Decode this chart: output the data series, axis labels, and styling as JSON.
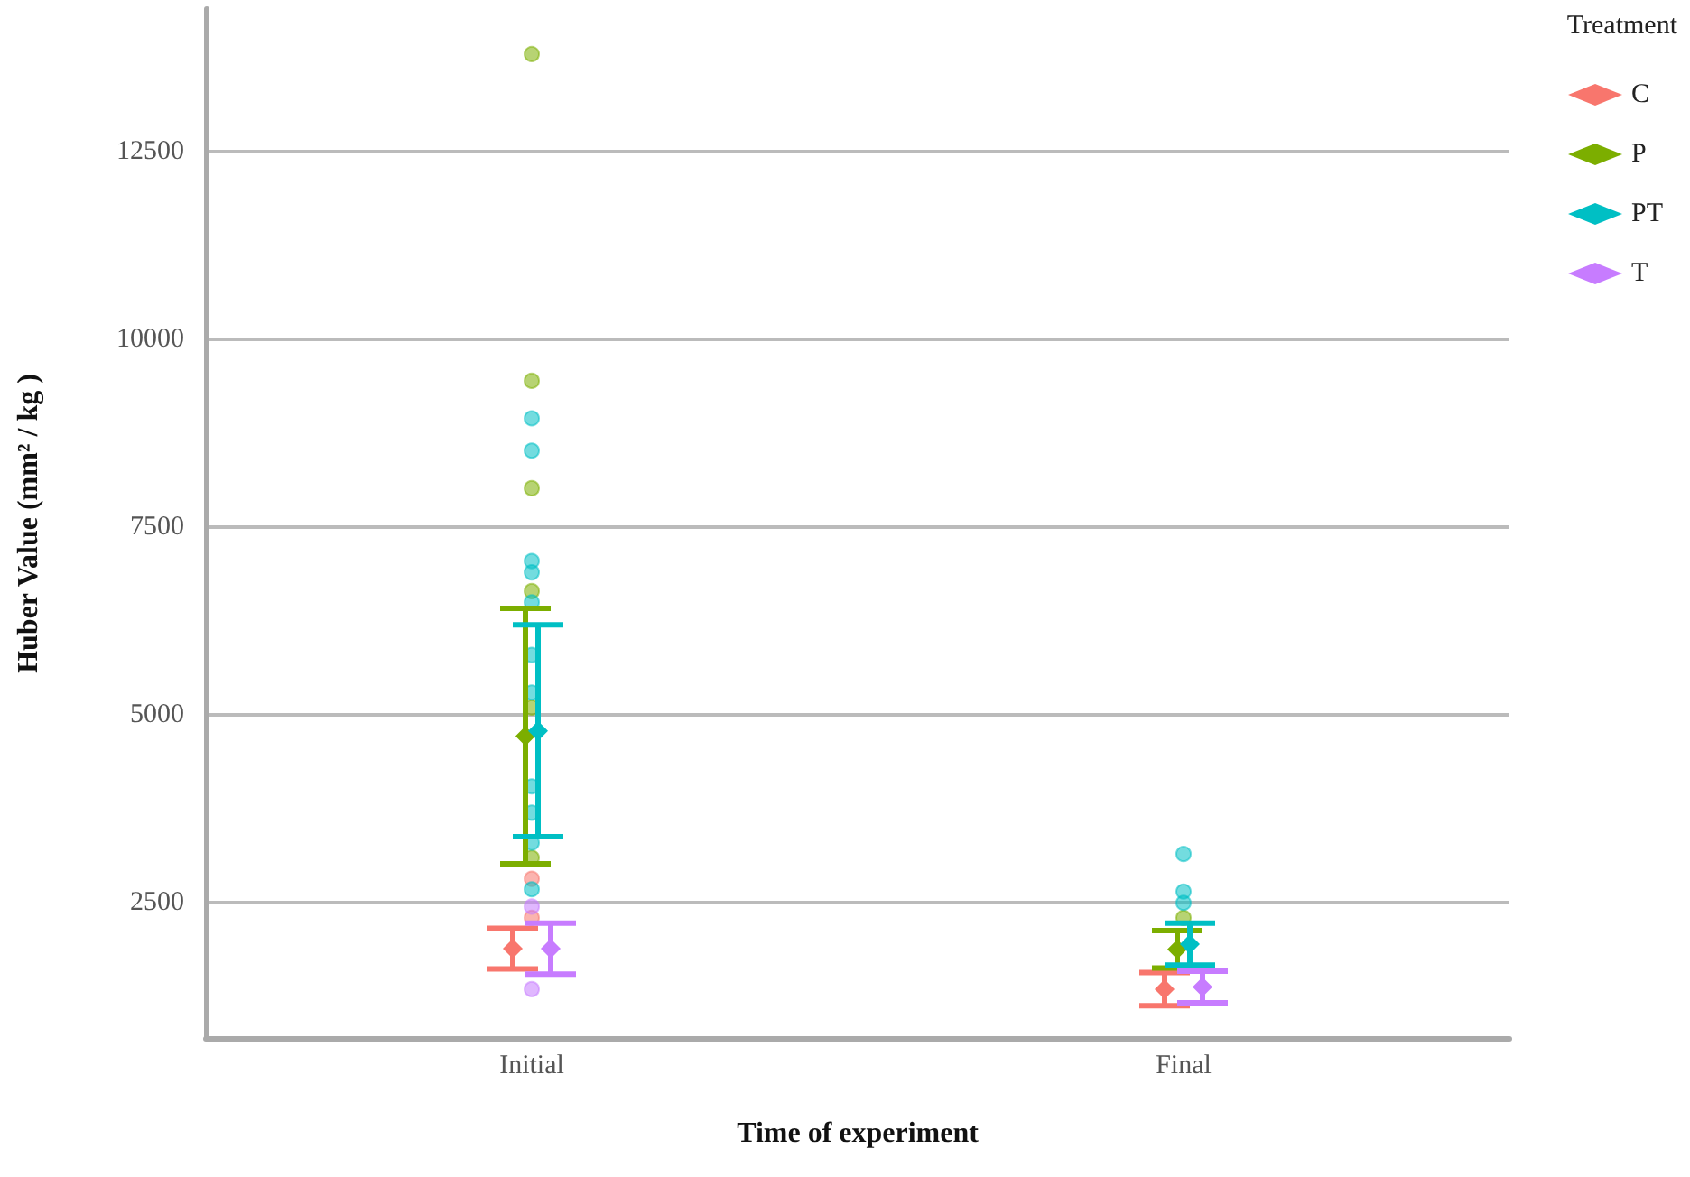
{
  "chart_data": {
    "type": "scatter",
    "xlabel": "Time of experiment",
    "ylabel": "Huber Value (mm² / kg )",
    "legend_title": "Treatment",
    "legend": "right",
    "grid": "y",
    "categories": [
      "Initial",
      "Final"
    ],
    "ylim": [
      700,
      14400
    ],
    "yticks": [
      2500,
      5000,
      7500,
      10000,
      12500
    ],
    "series": [
      {
        "marker": "circle",
        "color": "#f8766d",
        "x": [
          "Initial",
          "Initial"
        ],
        "values": [
          2300,
          2820
        ]
      },
      {
        "marker": "circle",
        "color": "#7cae00",
        "x": [
          "Initial",
          "Initial",
          "Initial",
          "Initial",
          "Initial",
          "Initial",
          "Final"
        ],
        "values": [
          13800,
          9450,
          8020,
          6650,
          5100,
          3100,
          2300
        ]
      },
      {
        "marker": "circle",
        "color": "#00bfc4",
        "x": [
          "Initial",
          "Initial",
          "Initial",
          "Initial",
          "Initial",
          "Initial",
          "Initial",
          "Initial",
          "Initial",
          "Initial",
          "Initial",
          "Final",
          "Final",
          "Final"
        ],
        "values": [
          8950,
          8520,
          7050,
          6900,
          6500,
          5800,
          5300,
          4050,
          3700,
          3300,
          2680,
          3150,
          2650,
          2500
        ]
      },
      {
        "marker": "circle",
        "color": "#c77cff",
        "x": [
          "Initial",
          "Initial"
        ],
        "values": [
          1350,
          2450
        ]
      },
      {
        "marker": "diamond",
        "name": "C",
        "color": "#f8766d",
        "x": [
          "Initial",
          "Final"
        ],
        "values": [
          1890,
          1350
        ],
        "errors": [
          270,
          220
        ]
      },
      {
        "marker": "diamond",
        "name": "P",
        "color": "#7cae00",
        "x": [
          "Initial",
          "Final"
        ],
        "values": [
          4720,
          1880
        ],
        "errors": [
          1700,
          250
        ]
      },
      {
        "marker": "diamond",
        "name": "PT",
        "color": "#00bfc4",
        "x": [
          "Initial",
          "Final"
        ],
        "values": [
          4790,
          1950
        ],
        "errors": [
          1410,
          280
        ]
      },
      {
        "marker": "diamond",
        "name": "T",
        "color": "#c77cff",
        "x": [
          "Initial",
          "Final"
        ],
        "values": [
          1890,
          1380
        ],
        "errors": [
          340,
          210
        ]
      }
    ]
  }
}
